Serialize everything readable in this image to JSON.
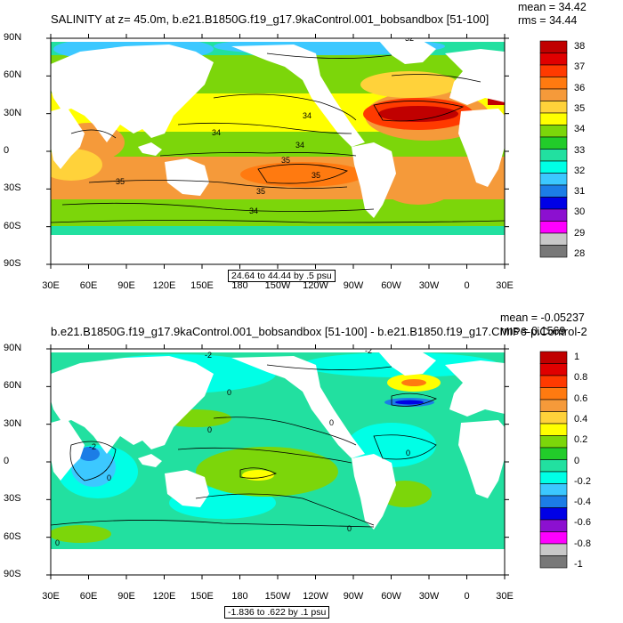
{
  "top": {
    "title": "SALINITY at z=  45.0m, b.e21.B1850G.f19_g17.9kaControl.001_bobsandbox [51-100]",
    "mean": "mean = 34.42",
    "rms": "rms = 34.44",
    "range_label": "24.64 to 44.44 by .5 psu",
    "colorbar_labels": [
      "38",
      "37",
      "36",
      "35",
      "34",
      "33",
      "32",
      "31",
      "30",
      "29",
      "28"
    ],
    "colors": [
      "#c00000",
      "#e00000",
      "#ff3a00",
      "#ff7a10",
      "#f59a3a",
      "#ffd23a",
      "#ffff00",
      "#7cd60a",
      "#22cc2a",
      "#22e0a0",
      "#00ffe6",
      "#3cc8ff",
      "#1c7de6",
      "#0000e6",
      "#8c10d0",
      "#ff00ff",
      "#c8c8c8",
      "#787878"
    ],
    "contour_labels": [
      "32",
      "34",
      "34",
      "34",
      "35",
      "35",
      "35",
      "35",
      "34"
    ]
  },
  "bottom": {
    "title": "b.e21.B1850G.f19_g17.9kaControl.001_bobsandbox [51-100] - b.e21.B1850.f19_g17.CMIP6-piControl-2",
    "mean": "mean = -0.05237",
    "rms": "rms = 0.1569",
    "range_label": "-1.836 to .622 by .1 psu",
    "colorbar_labels": [
      "1",
      "0.8",
      "0.6",
      "0.4",
      "0.2",
      "0",
      "-0.2",
      "-0.4",
      "-0.6",
      "-0.8",
      "-1"
    ],
    "colors": [
      "#c00000",
      "#e00000",
      "#ff3a00",
      "#ff7a10",
      "#f59a3a",
      "#ffd23a",
      "#ffff00",
      "#7cd60a",
      "#22cc2a",
      "#22e0a0",
      "#00ffe6",
      "#3cc8ff",
      "#1c7de6",
      "#0000e6",
      "#8c10d0",
      "#ff00ff",
      "#c8c8c8",
      "#787878"
    ],
    "contour_labels": [
      "-2",
      "0",
      "0",
      "0",
      "0",
      "-2",
      "-2",
      "0",
      "0",
      "0"
    ]
  },
  "axes": {
    "lon_labels": [
      "30E",
      "60E",
      "90E",
      "120E",
      "150E",
      "180",
      "150W",
      "120W",
      "90W",
      "60W",
      "30W",
      "0",
      "30E"
    ],
    "lat_labels": [
      "90N",
      "60N",
      "30N",
      "0",
      "30S",
      "60S",
      "90S"
    ]
  }
}
